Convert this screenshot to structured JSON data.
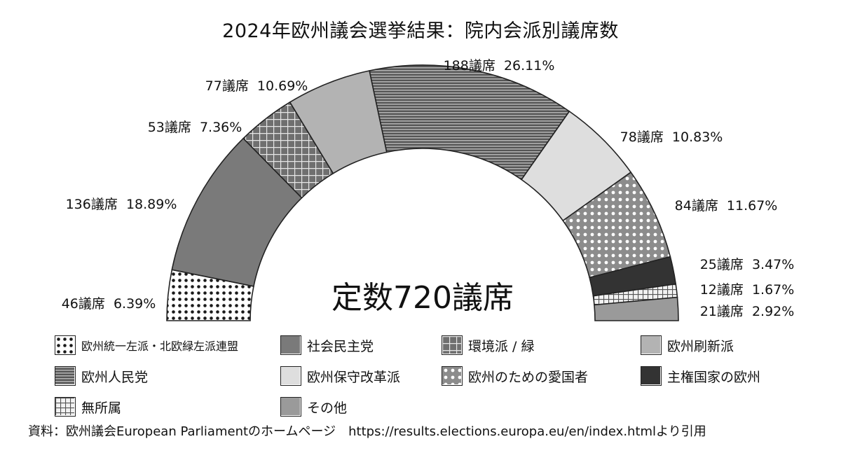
{
  "chart_data": {
    "type": "pie",
    "title": "2024年欧州議会選挙結果：院内会派別議席数",
    "center_label": "定数720議席",
    "total": 720,
    "slices": [
      {
        "name": "欧州統一左派・北欧緑左派連盟",
        "value": 46,
        "label": "46議席",
        "percent": "6.39%",
        "pattern": "dots-dark"
      },
      {
        "name": "社会民主党",
        "value": 136,
        "label": "136議席",
        "percent": "18.89%",
        "pattern": "solid-mid"
      },
      {
        "name": "環境派 / 緑",
        "value": 53,
        "label": "53議席",
        "percent": "7.36%",
        "pattern": "grid-dark"
      },
      {
        "name": "欧州刷新派",
        "value": 77,
        "label": "77議席",
        "percent": "10.69%",
        "pattern": "solid-light"
      },
      {
        "name": "欧州人民党",
        "value": 188,
        "label": "188議席",
        "percent": "26.11%",
        "pattern": "hstripes"
      },
      {
        "name": "欧州保守改革派",
        "value": 78,
        "label": "78議席",
        "percent": "10.83%",
        "pattern": "solid-pale"
      },
      {
        "name": "欧州のための愛国者",
        "value": 84,
        "label": "84議席",
        "percent": "11.67%",
        "pattern": "dots-light"
      },
      {
        "name": "主権国家の欧州",
        "value": 25,
        "label": "25議席",
        "percent": "3.47%",
        "pattern": "solid-dark"
      },
      {
        "name": "無所属",
        "value": 12,
        "label": "12議席",
        "percent": "1.67%",
        "pattern": "grid-light"
      },
      {
        "name": "その他",
        "value": 21,
        "label": "21議席",
        "percent": "2.92%",
        "pattern": "solid-gray"
      }
    ],
    "legend_position": "bottom",
    "colors": {
      "dots-dark": "#ffffff",
      "solid-mid": "#7a7a7a",
      "grid-dark": "#7d7d7d",
      "solid-light": "#b3b3b3",
      "hstripes": "#808080",
      "solid-pale": "#dedede",
      "dots-light": "#9c9c9c",
      "solid-dark": "#333333",
      "grid-light": "#e8e8e8",
      "solid-gray": "#9a9a9a"
    }
  },
  "legend": [
    {
      "label": "欧州統一左派・北欧緑左派連盟",
      "pattern": "dots-dark"
    },
    {
      "label": "社会民主党",
      "pattern": "solid-mid"
    },
    {
      "label": "環境派 / 緑",
      "pattern": "grid-dark"
    },
    {
      "label": "欧州刷新派",
      "pattern": "solid-light"
    },
    {
      "label": "欧州人民党",
      "pattern": "hstripes"
    },
    {
      "label": "欧州保守改革派",
      "pattern": "solid-pale"
    },
    {
      "label": "欧州のための愛国者",
      "pattern": "dots-light"
    },
    {
      "label": "主権国家の欧州",
      "pattern": "solid-dark"
    },
    {
      "label": "無所属",
      "pattern": "grid-light"
    },
    {
      "label": "その他",
      "pattern": "solid-gray"
    }
  ],
  "source_note": "資料：欧州議会European Parliamentのホームページ　https://results.elections.europa.eu/en/index.htmlより引用"
}
